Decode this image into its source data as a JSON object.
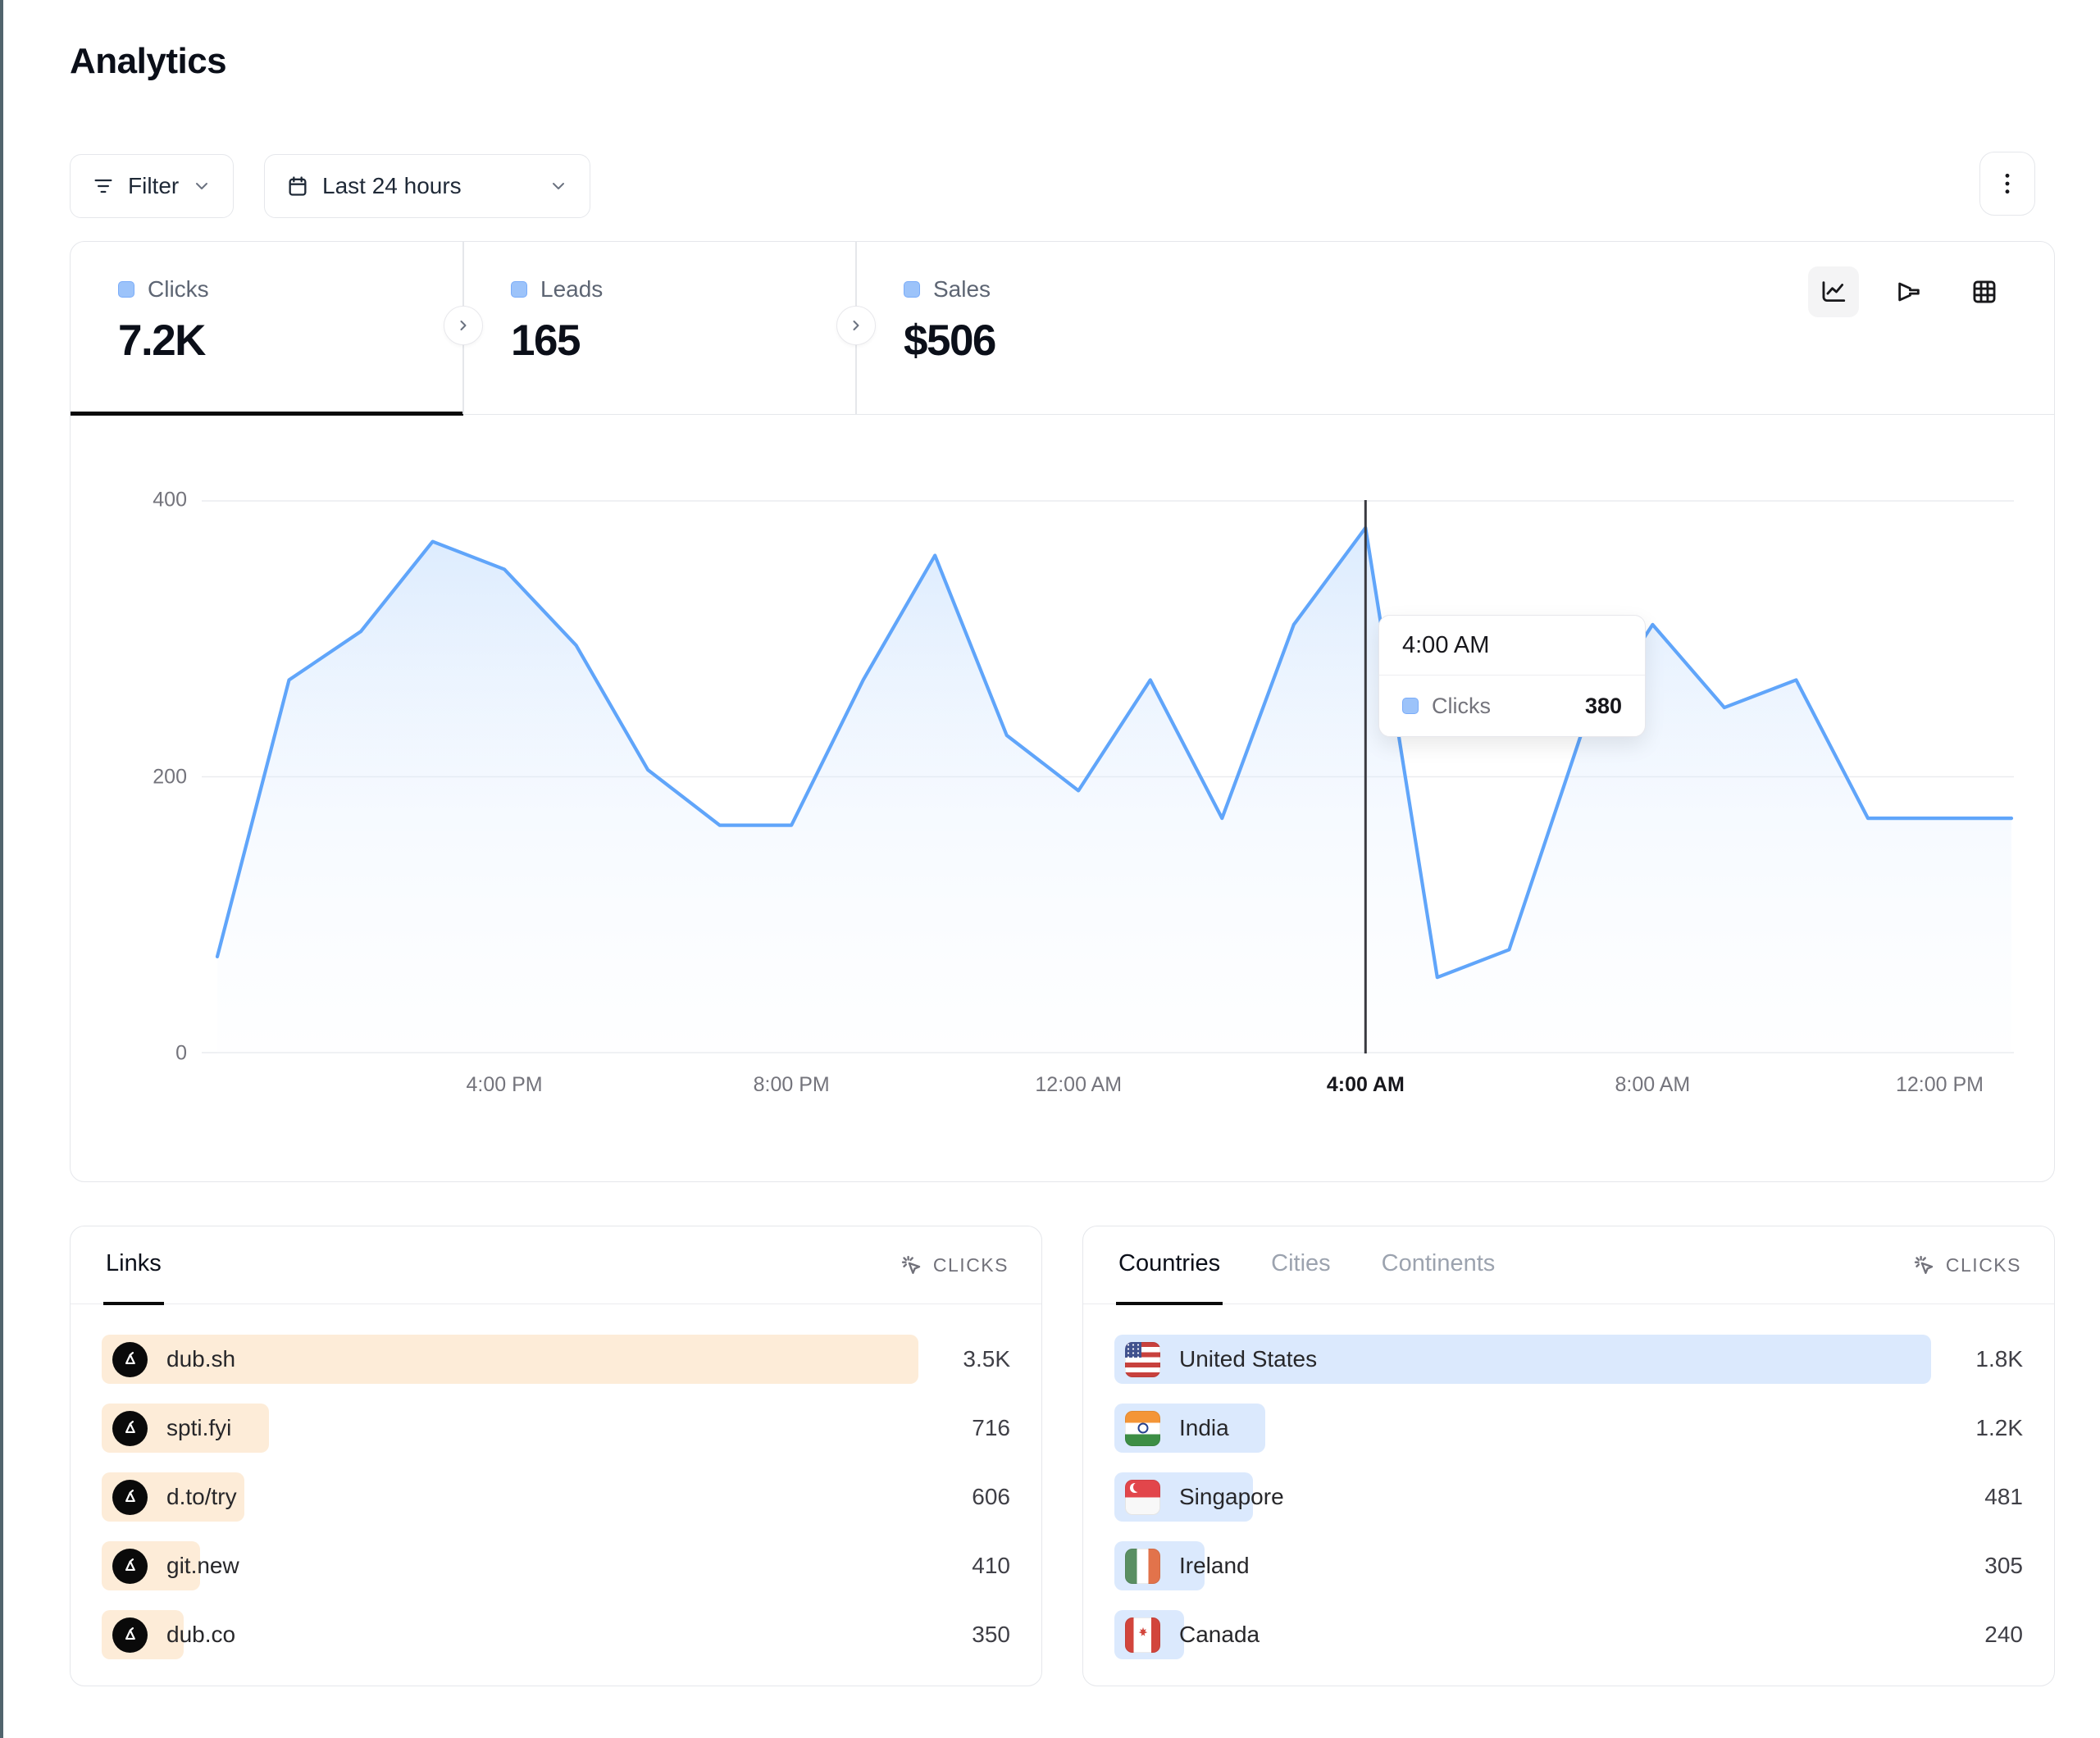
{
  "page": {
    "title": "Analytics"
  },
  "toolbar": {
    "filter_label": "Filter",
    "date_range_label": "Last 24 hours"
  },
  "stats": [
    {
      "label": "Clicks",
      "value": "7.2K",
      "selected": true
    },
    {
      "label": "Leads",
      "value": "165",
      "selected": false
    },
    {
      "label": "Sales",
      "value": "$506",
      "selected": false
    }
  ],
  "chart_data": {
    "type": "area",
    "series_name": "Clicks",
    "x_start": "12:00 PM",
    "x_interval": "1 hour",
    "values": [
      70,
      270,
      305,
      370,
      350,
      295,
      205,
      165,
      165,
      270,
      360,
      230,
      190,
      270,
      170,
      310,
      380,
      55,
      75,
      230,
      310,
      250,
      270,
      170,
      170,
      170
    ],
    "x_ticks": [
      {
        "index": 4,
        "label": "4:00 PM",
        "highlight": false
      },
      {
        "index": 8,
        "label": "8:00 PM",
        "highlight": false
      },
      {
        "index": 12,
        "label": "12:00 AM",
        "highlight": false
      },
      {
        "index": 16,
        "label": "4:00 AM",
        "highlight": true
      },
      {
        "index": 20,
        "label": "8:00 AM",
        "highlight": false
      },
      {
        "index": 24,
        "label": "12:00 PM",
        "highlight": false
      }
    ],
    "y_ticks": [
      0,
      200,
      400
    ],
    "ylim": [
      0,
      400
    ],
    "grid": "horizontal",
    "legend_position": "none",
    "line_color": "#60a5fa",
    "hover_marker": {
      "index": 16,
      "label": "4:00 AM",
      "series": "Clicks",
      "value": 380
    }
  },
  "links_panel": {
    "tab": "Links",
    "metric_label": "CLICKS",
    "rows": [
      {
        "label": "dub.sh",
        "value": "3.5K",
        "bar_pct": 100
      },
      {
        "label": "spti.fyi",
        "value": "716",
        "bar_pct": 20.5
      },
      {
        "label": "d.to/try",
        "value": "606",
        "bar_pct": 17.5
      },
      {
        "label": "git.new",
        "value": "410",
        "bar_pct": 12
      },
      {
        "label": "dub.co",
        "value": "350",
        "bar_pct": 10
      }
    ]
  },
  "geo_panel": {
    "tabs": [
      "Countries",
      "Cities",
      "Continents"
    ],
    "selected_tab": "Countries",
    "metric_label": "CLICKS",
    "rows": [
      {
        "label": "United States",
        "value": "1.8K",
        "flag": "us",
        "bar_pct": 100
      },
      {
        "label": "India",
        "value": "1.2K",
        "flag": "in",
        "bar_pct": 18.5
      },
      {
        "label": "Singapore",
        "value": "481",
        "flag": "sg",
        "bar_pct": 17
      },
      {
        "label": "Ireland",
        "value": "305",
        "flag": "ie",
        "bar_pct": 11
      },
      {
        "label": "Canada",
        "value": "240",
        "flag": "ca",
        "bar_pct": 8.5
      }
    ]
  },
  "colors": {
    "accent_line": "#60a5fa",
    "legend_swatch": "#9cc3fa",
    "links_bar": "#fdecd8",
    "geo_bar": "#dbe9fd",
    "selected_underline": "#0a0a0a"
  }
}
